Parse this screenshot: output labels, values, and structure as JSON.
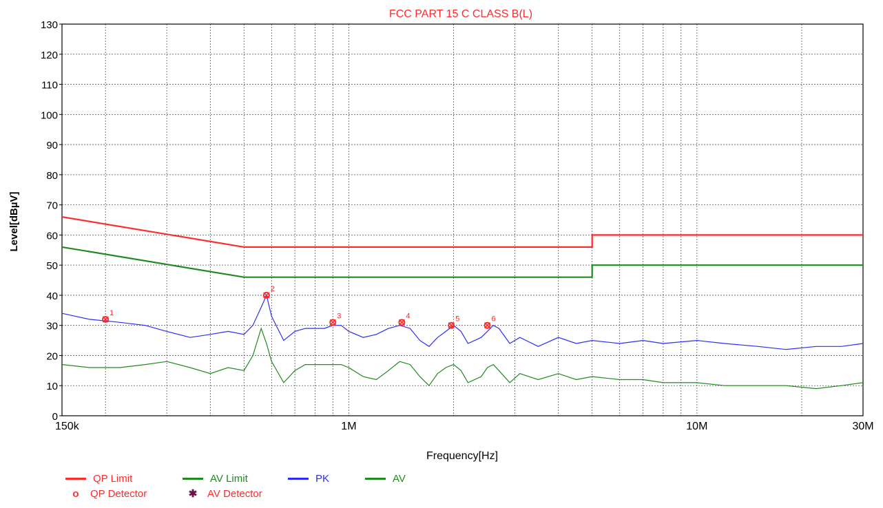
{
  "chart_data": {
    "type": "line",
    "title": "FCC PART 15 C CLASS B(L)",
    "xlabel": "Frequency[Hz]",
    "ylabel": "Level[dBµV]",
    "x_scale": "log",
    "xlim": [
      150000,
      30000000
    ],
    "ylim": [
      0,
      130
    ],
    "y_ticks": [
      0,
      10,
      20,
      30,
      40,
      50,
      60,
      70,
      80,
      90,
      100,
      110,
      120,
      130
    ],
    "x_tick_labels": [
      {
        "value": 150000,
        "label": "150k"
      },
      {
        "value": 1000000,
        "label": "1M"
      },
      {
        "value": 10000000,
        "label": "10M"
      },
      {
        "value": 30000000,
        "label": "30M"
      }
    ],
    "grid": true,
    "legend_position": "bottom-left",
    "series": [
      {
        "name": "QP Limit",
        "color": "#ff2a2a",
        "x": [
          150000,
          500000,
          500000,
          5000000,
          5000000,
          30000000
        ],
        "y": [
          66,
          56,
          56,
          56,
          60,
          60
        ]
      },
      {
        "name": "AV Limit",
        "color": "#1f8a1f",
        "x": [
          150000,
          500000,
          500000,
          5000000,
          5000000,
          30000000
        ],
        "y": [
          56,
          46,
          46,
          46,
          50,
          50
        ]
      },
      {
        "name": "PK",
        "color": "#2b2bff",
        "x": [
          150000,
          180000,
          220000,
          260000,
          300000,
          350000,
          400000,
          450000,
          500000,
          530000,
          560000,
          580000,
          600000,
          650000,
          700000,
          750000,
          800000,
          850000,
          900000,
          950000,
          1000000,
          1100000,
          1200000,
          1300000,
          1400000,
          1500000,
          1600000,
          1700000,
          1800000,
          1900000,
          2000000,
          2100000,
          2200000,
          2400000,
          2500000,
          2600000,
          2700000,
          2900000,
          3100000,
          3500000,
          4000000,
          4500000,
          5000000,
          6000000,
          7000000,
          8000000,
          10000000,
          12000000,
          15000000,
          18000000,
          22000000,
          26000000,
          30000000
        ],
        "y": [
          34,
          32,
          31,
          30,
          28,
          26,
          27,
          28,
          27,
          30,
          36,
          40,
          33,
          25,
          28,
          29,
          29,
          29,
          30,
          30,
          28,
          26,
          27,
          29,
          30,
          29,
          25,
          23,
          26,
          28,
          30,
          28,
          24,
          26,
          28,
          30,
          29,
          24,
          26,
          23,
          26,
          24,
          25,
          24,
          25,
          24,
          25,
          24,
          23,
          22,
          23,
          23,
          24
        ]
      },
      {
        "name": "AV",
        "color": "#1f8a1f",
        "x": [
          150000,
          180000,
          220000,
          260000,
          300000,
          350000,
          400000,
          450000,
          500000,
          530000,
          560000,
          580000,
          600000,
          650000,
          700000,
          750000,
          800000,
          850000,
          900000,
          950000,
          1000000,
          1100000,
          1200000,
          1300000,
          1400000,
          1500000,
          1600000,
          1700000,
          1800000,
          1900000,
          2000000,
          2100000,
          2200000,
          2400000,
          2500000,
          2600000,
          2700000,
          2900000,
          3100000,
          3500000,
          4000000,
          4500000,
          5000000,
          6000000,
          7000000,
          8000000,
          10000000,
          12000000,
          15000000,
          18000000,
          22000000,
          26000000,
          30000000
        ],
        "y": [
          17,
          16,
          16,
          17,
          18,
          16,
          14,
          16,
          15,
          20,
          29,
          24,
          18,
          11,
          15,
          17,
          17,
          17,
          17,
          17,
          16,
          13,
          12,
          15,
          18,
          17,
          13,
          10,
          14,
          16,
          17,
          15,
          11,
          13,
          16,
          17,
          15,
          11,
          14,
          12,
          14,
          12,
          13,
          12,
          12,
          11,
          11,
          10,
          10,
          10,
          9,
          10,
          11
        ]
      }
    ],
    "markers": [
      {
        "label": "1",
        "x": 200000,
        "y": 32
      },
      {
        "label": "2",
        "x": 580000,
        "y": 40
      },
      {
        "label": "3",
        "x": 900000,
        "y": 31
      },
      {
        "label": "4",
        "x": 1420000,
        "y": 31
      },
      {
        "label": "5",
        "x": 1970000,
        "y": 30
      },
      {
        "label": "6",
        "x": 2500000,
        "y": 30
      }
    ],
    "marker_color": "#ff2a2a"
  },
  "legend": {
    "qp_limit": "QP Limit",
    "av_limit": "AV Limit",
    "pk": "PK",
    "av": "AV",
    "qp_detector": "QP Detector",
    "av_detector": "AV Detector",
    "qp_detector_color": "#ff2a2a",
    "av_detector_color": "#6b0f4a"
  }
}
